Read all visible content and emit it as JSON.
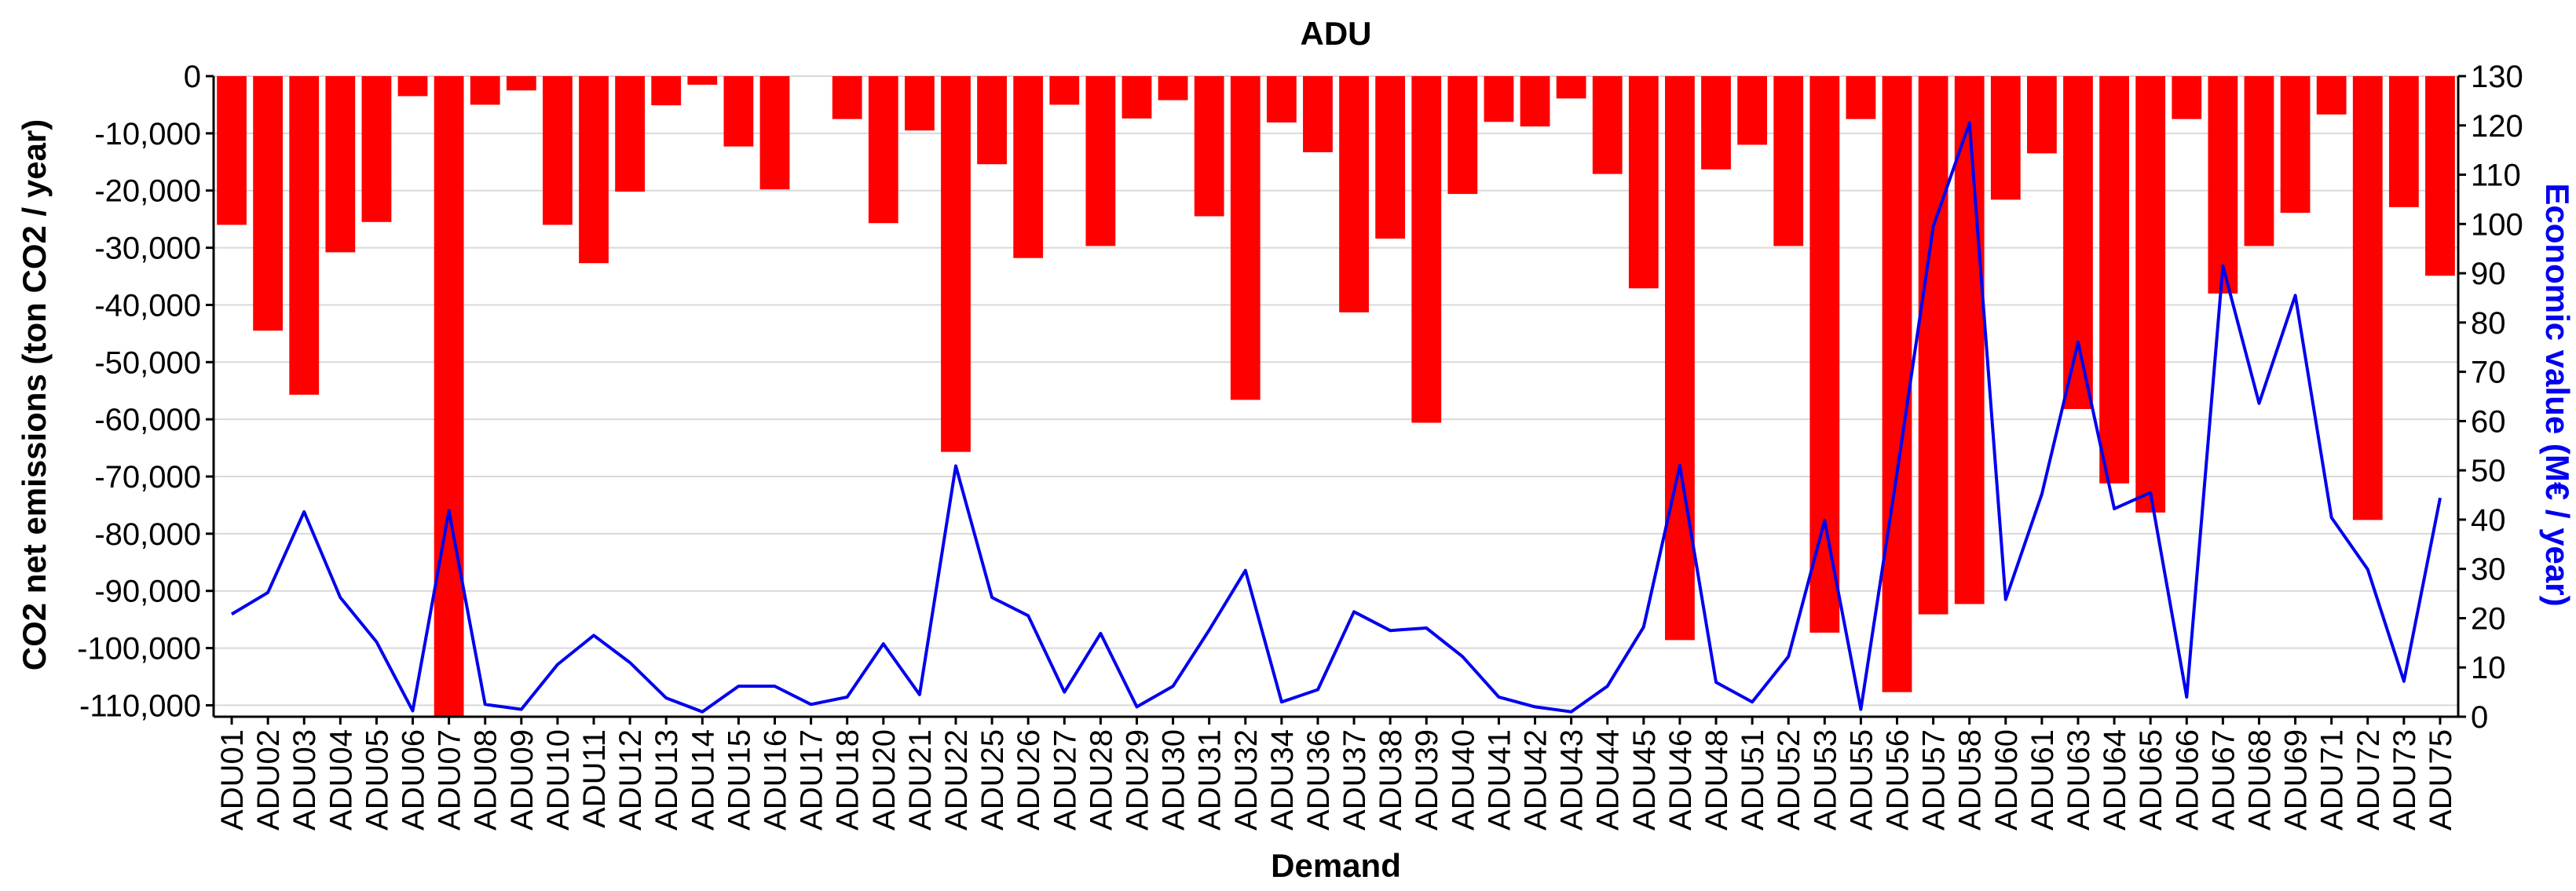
{
  "chart_data": {
    "type": "bar",
    "title": "ADU",
    "xlabel": "Demand",
    "ylabel": "CO2 net emissions (ton CO2 / year)",
    "y2label": "Economic value (M€ / year)",
    "ylim": [
      -112000,
      0
    ],
    "y2lim": [
      0,
      130
    ],
    "yticks": [
      0,
      -10000,
      -20000,
      -30000,
      -40000,
      -50000,
      -60000,
      -70000,
      -80000,
      -90000,
      -100000,
      -110000
    ],
    "ytick_labels": [
      "0",
      "-10,000",
      "-20,000",
      "-30,000",
      "-40,000",
      "-50,000",
      "-60,000",
      "-70,000",
      "-80,000",
      "-90,000",
      "-100,000",
      "-110,000"
    ],
    "y2ticks": [
      0,
      10,
      20,
      30,
      40,
      50,
      60,
      70,
      80,
      90,
      100,
      110,
      120,
      130
    ],
    "y2tick_labels": [
      "0",
      "10",
      "20",
      "30",
      "40",
      "50",
      "60",
      "70",
      "80",
      "90",
      "100",
      "110",
      "120",
      "130"
    ],
    "grid": true,
    "categories": [
      "ADU01",
      "ADU02",
      "ADU03",
      "ADU04",
      "ADU05",
      "ADU06",
      "ADU07",
      "ADU08",
      "ADU09",
      "ADU10",
      "ADU11",
      "ADU12",
      "ADU13",
      "ADU14",
      "ADU15",
      "ADU16",
      "ADU17",
      "ADU18",
      "ADU20",
      "ADU21",
      "ADU22",
      "ADU25",
      "ADU26",
      "ADU27",
      "ADU28",
      "ADU29",
      "ADU30",
      "ADU31",
      "ADU32",
      "ADU34",
      "ADU36",
      "ADU37",
      "ADU38",
      "ADU39",
      "ADU40",
      "ADU41",
      "ADU42",
      "ADU43",
      "ADU44",
      "ADU45",
      "ADU46",
      "ADU48",
      "ADU51",
      "ADU52",
      "ADU53",
      "ADU55",
      "ADU56",
      "ADU57",
      "ADU58",
      "ADU60",
      "ADU61",
      "ADU63",
      "ADU64",
      "ADU65",
      "ADU66",
      "ADU67",
      "ADU68",
      "ADU69",
      "ADU71",
      "ADU72",
      "ADU73",
      "ADU75"
    ],
    "series": [
      {
        "type": "bar",
        "axis": "left",
        "color": "#ff0000",
        "values": [
          -26000,
          -44500,
          -55700,
          -30800,
          -25500,
          -3500,
          -112000,
          -5000,
          -2500,
          -26000,
          -32700,
          -20200,
          -5100,
          -1500,
          -12300,
          -19800,
          0,
          -7500,
          -25700,
          -9500,
          -65700,
          -15400,
          -31800,
          -5000,
          -29700,
          -7400,
          -4200,
          -24500,
          -56600,
          -8100,
          -13300,
          -41300,
          -28400,
          -60600,
          -20600,
          -8000,
          -8800,
          -3900,
          -17100,
          -37100,
          -98600,
          -16300,
          -12000,
          -29700,
          -97300,
          -7500,
          -107700,
          -94100,
          -92300,
          -21600,
          -13500,
          -58200,
          -71200,
          -76300,
          -7500,
          -38000,
          -29700,
          -23900,
          -6700,
          -77600,
          -22900,
          -34900
        ]
      },
      {
        "type": "line",
        "axis": "right",
        "color": "#0000ee",
        "values": [
          20.8,
          25.2,
          41.6,
          24.2,
          15.2,
          1.2,
          41.8,
          2.5,
          1.5,
          10.6,
          16.5,
          11.0,
          3.8,
          1.0,
          6.2,
          6.2,
          2.5,
          4.0,
          14.8,
          4.5,
          50.9,
          24.2,
          20.5,
          5.0,
          16.9,
          2.0,
          6.2,
          17.6,
          29.7,
          3.0,
          5.5,
          21.3,
          17.5,
          18.0,
          12.2,
          4.0,
          2.0,
          1.0,
          6.2,
          18.2,
          51.0,
          7.0,
          3.0,
          12.2,
          39.8,
          1.5,
          49.5,
          99.5,
          120.5,
          23.8,
          45.2,
          76.0,
          42.2,
          45.5,
          4.0,
          91.5,
          63.6,
          85.5,
          40.4,
          29.9,
          7.2,
          44.4
        ]
      }
    ]
  }
}
